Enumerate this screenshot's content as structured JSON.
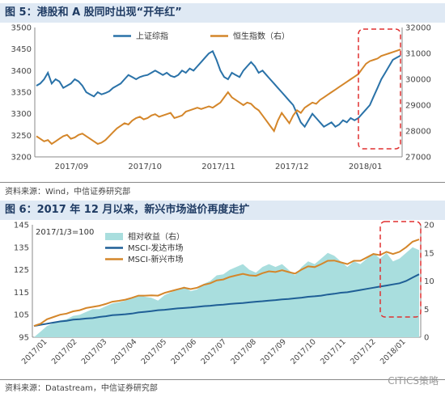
{
  "figure1": {
    "title": "图 5：港股和 A 股同时出现“开年红”",
    "source": "资料来源：Wind，中信证券研究部",
    "chart_data": {
      "type": "line",
      "x_labels": [
        "2017/09",
        "2017/10",
        "2017/11",
        "2017/12",
        "2018/01"
      ],
      "ylim_left": [
        3200,
        3500
      ],
      "yticks_left": [
        3200,
        3250,
        3300,
        3350,
        3400,
        3450,
        3500
      ],
      "ylim_right": [
        27000,
        32000
      ],
      "yticks_right": [
        27000,
        28000,
        29000,
        30000,
        31000,
        32000
      ],
      "series": [
        {
          "name": "上证综指",
          "axis": "left",
          "color": "#2a72a8",
          "values": [
            3365,
            3370,
            3380,
            3395,
            3370,
            3380,
            3375,
            3360,
            3365,
            3370,
            3380,
            3375,
            3365,
            3350,
            3345,
            3340,
            3350,
            3345,
            3348,
            3352,
            3360,
            3365,
            3370,
            3380,
            3390,
            3385,
            3380,
            3385,
            3388,
            3390,
            3395,
            3400,
            3395,
            3390,
            3395,
            3388,
            3385,
            3390,
            3400,
            3395,
            3405,
            3400,
            3410,
            3420,
            3430,
            3440,
            3445,
            3425,
            3400,
            3385,
            3380,
            3395,
            3390,
            3385,
            3400,
            3410,
            3420,
            3410,
            3395,
            3400,
            3390,
            3380,
            3370,
            3360,
            3350,
            3340,
            3330,
            3320,
            3300,
            3280,
            3270,
            3285,
            3300,
            3290,
            3280,
            3270,
            3275,
            3280,
            3270,
            3275,
            3285,
            3280,
            3290,
            3285,
            3290,
            3300,
            3310,
            3320,
            3340,
            3360,
            3380,
            3395,
            3410,
            3425,
            3430,
            3435
          ]
        },
        {
          "name": "恒生指数（右）",
          "axis": "right",
          "color": "#d4862a",
          "values": [
            27800,
            27700,
            27600,
            27650,
            27500,
            27600,
            27700,
            27800,
            27850,
            27700,
            27750,
            27850,
            27900,
            27800,
            27700,
            27600,
            27500,
            27550,
            27650,
            27800,
            27950,
            28100,
            28200,
            28300,
            28250,
            28400,
            28500,
            28550,
            28450,
            28500,
            28600,
            28650,
            28550,
            28600,
            28650,
            28700,
            28500,
            28550,
            28600,
            28750,
            28800,
            28850,
            28900,
            28850,
            28900,
            28950,
            28900,
            29000,
            29100,
            29300,
            29500,
            29300,
            29200,
            29100,
            29000,
            29100,
            29050,
            28900,
            28800,
            28600,
            28400,
            28200,
            28000,
            28400,
            28700,
            28500,
            28300,
            28600,
            28800,
            28700,
            28900,
            29000,
            29100,
            29050,
            29200,
            29300,
            29400,
            29500,
            29600,
            29700,
            29800,
            29900,
            30000,
            30100,
            30200,
            30400,
            30600,
            30700,
            30750,
            30800,
            30900,
            30950,
            31000,
            31050,
            31100,
            31150
          ]
        }
      ]
    }
  },
  "figure2": {
    "title": "图 6：2017 年 12 月以来，新兴市场溢价再度走扩",
    "note": "2017/1/3=100",
    "source": "资料来源：Datastream，中信证券研究部",
    "chart_data": {
      "type": "line",
      "x_labels": [
        "2017/01",
        "2017/02",
        "2017/03",
        "2017/04",
        "2017/05",
        "2017/06",
        "2017/07",
        "2017/08",
        "2017/09",
        "2017/10",
        "2017/11",
        "2017/12",
        "2018/01"
      ],
      "ylim_left": [
        95,
        145
      ],
      "yticks_left": [
        95,
        105,
        115,
        125,
        135,
        145
      ],
      "ylim_right": [
        0,
        20
      ],
      "yticks_right": [
        0,
        5,
        10,
        15,
        20
      ],
      "series": [
        {
          "name": "相对收益（右）",
          "type": "area",
          "axis": "right",
          "color": "#a9dede",
          "values": [
            0,
            1,
            2,
            2.5,
            3,
            3.2,
            3.8,
            4,
            4.5,
            5,
            5,
            5.5,
            6,
            6.2,
            6.5,
            7,
            7.5,
            7.2,
            7,
            6.5,
            7.5,
            8,
            8.5,
            9,
            8.2,
            8.5,
            9.5,
            10,
            11,
            11.2,
            12,
            12.5,
            13,
            12,
            11.5,
            12.5,
            13,
            12.5,
            13,
            12,
            11,
            12.5,
            13.5,
            13,
            14,
            15,
            14.5,
            13.5,
            12.5,
            13.5,
            13,
            14,
            15,
            14,
            15,
            13.5,
            14,
            15,
            16,
            15.5
          ]
        },
        {
          "name": "MSCI-发达市场",
          "type": "line",
          "axis": "left",
          "color": "#1f5f96",
          "values": [
            100,
            100.5,
            101,
            101.5,
            102,
            102.3,
            102.8,
            103,
            103.3,
            103.5,
            104,
            104.3,
            104.8,
            105,
            105.2,
            105.5,
            106,
            106.3,
            106.6,
            107,
            107.2,
            107.5,
            107.8,
            108,
            108.2,
            108.5,
            108.8,
            109,
            109.3,
            109.5,
            109.8,
            110,
            110.2,
            110.5,
            110.8,
            111,
            111.3,
            111.5,
            111.8,
            112,
            112.3,
            112.6,
            113,
            113.2,
            113.5,
            114,
            114.3,
            114.8,
            115,
            115.5,
            116,
            116.5,
            117,
            117.5,
            118,
            118.5,
            119,
            120,
            121.5,
            123
          ]
        },
        {
          "name": "MSCI-新兴市场",
          "type": "line",
          "axis": "left",
          "color": "#d4862a",
          "values": [
            100,
            101,
            103,
            104,
            105,
            105.5,
            106.5,
            107,
            108,
            108.5,
            109,
            109.8,
            110.8,
            111.2,
            111.7,
            112.5,
            113.5,
            113.5,
            113.6,
            113.5,
            114.7,
            115.5,
            116.3,
            117,
            116.4,
            117,
            118.3,
            119,
            120.3,
            120.7,
            121.8,
            122.5,
            123.2,
            122.5,
            122.3,
            123.5,
            124.3,
            124,
            124.8,
            124,
            123.3,
            125.1,
            126.5,
            126.2,
            127.5,
            129,
            129.1,
            128.3,
            127.5,
            129.0,
            129.0,
            130.5,
            132,
            131.5,
            133,
            132,
            133,
            135,
            137.5,
            138.5
          ]
        }
      ]
    }
  },
  "watermark": "CITICS策略"
}
